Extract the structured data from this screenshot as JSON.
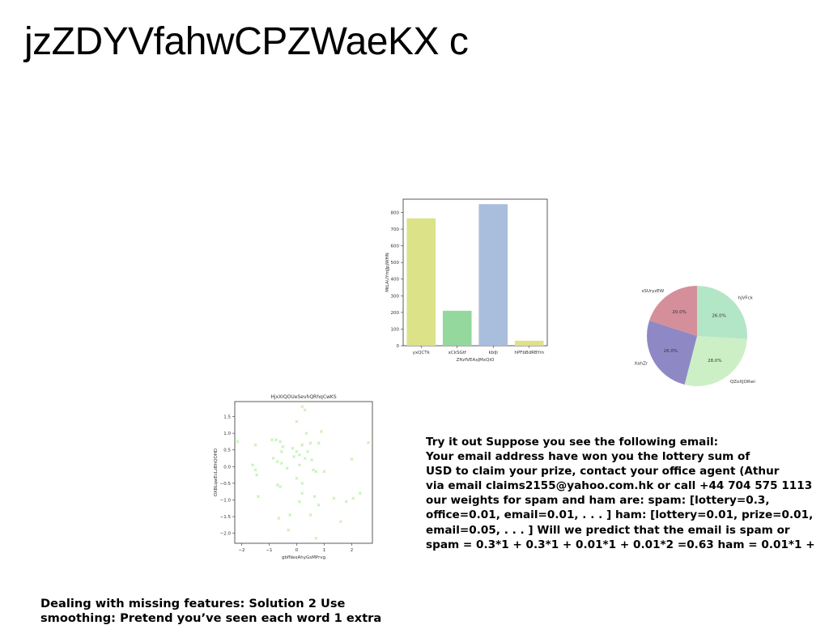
{
  "slide": {
    "title": "jzZDYVfahwCPZWaeKX c",
    "email_text": {
      "lines": [
        "Try it out Suppose you see the following email:",
        "Your email address have won you the lottery sum of",
        "USD to claim your prize, contact your office agent (Athur",
        "via email claims2155@yahoo.com.hk or call +44 704 575 1113",
        "our weights for spam and ham are: spam: [lottery=0.3,",
        "office=0.01, email=0.01, . . . ] ham: [lottery=0.01, prize=0.01,",
        "email=0.05, . . . ] Will we predict that the email is spam or",
        "spam = 0.3*1 + 0.3*1 + 0.01*1 + 0.01*2 =0.63 ham = 0.01*1 +"
      ]
    },
    "bottom_text": {
      "lines": [
        "Dealing with missing features: Solution 2 Use",
        "smoothing: Pretend you’ve seen each word 1 extra"
      ]
    }
  },
  "chart_data": [
    {
      "type": "bar",
      "title": "",
      "xlabel": "ZftzfVEAxJMxQiO",
      "ylabel": "MtLAUYmJJpjWHN",
      "categories": [
        "yxQCTk",
        "xCkSGtf",
        "kbIJi",
        "hPFbBdRBYm"
      ],
      "values": [
        765,
        210,
        850,
        30
      ],
      "colors": [
        "#dce287",
        "#94d89e",
        "#a9bddc",
        "#dfe187"
      ],
      "ylim": [
        0,
        880
      ],
      "yticks": [
        "0",
        "100",
        "200",
        "300",
        "400",
        "500",
        "600",
        "700",
        "800"
      ],
      "grid": false
    },
    {
      "type": "pie",
      "title": "",
      "labels": [
        "hjVFck",
        "QZoXJORwi",
        "XahZr",
        "sSUryzEW"
      ],
      "values": [
        26.0,
        28.0,
        26.0,
        20.0
      ],
      "pct_labels": [
        "26.0%",
        "28.0%",
        "26.0%",
        "20.0%"
      ],
      "colors": [
        "#b3e6c6",
        "#cdefc5",
        "#8e89c4",
        "#d48f9b"
      ]
    },
    {
      "type": "scatter",
      "title": "HjxXIQOUeSevhQRhqCwKS",
      "xlabel": "gbfNexAhyGsMPrvg",
      "ylabel": "OXBLqwEcLzBhQOHD",
      "xlim": [
        -2.25,
        2.75
      ],
      "ylim": [
        -2.3,
        1.95
      ],
      "xticks": [
        "−2",
        "−1",
        "0",
        "1",
        "2"
      ],
      "yticks": [
        "−2.0",
        "−1.5",
        "−1.0",
        "−0.5",
        "0.0",
        "0.5",
        "1.0",
        "1.5"
      ],
      "marker_color": "#b5ef9f",
      "marker": "x",
      "points": [
        [
          0.2,
          1.8
        ],
        [
          0.3,
          1.7
        ],
        [
          0.0,
          1.35
        ],
        [
          0.9,
          1.05
        ],
        [
          0.35,
          1.0
        ],
        [
          -2.15,
          0.75
        ],
        [
          -1.5,
          0.65
        ],
        [
          -0.9,
          0.8
        ],
        [
          -0.75,
          0.8
        ],
        [
          -0.6,
          0.75
        ],
        [
          -0.5,
          0.6
        ],
        [
          0.2,
          0.65
        ],
        [
          0.5,
          0.7
        ],
        [
          0.8,
          0.7
        ],
        [
          2.6,
          0.72
        ],
        [
          -0.55,
          0.45
        ],
        [
          -0.15,
          0.55
        ],
        [
          0.0,
          0.45
        ],
        [
          0.4,
          0.45
        ],
        [
          -0.85,
          0.25
        ],
        [
          -0.7,
          0.15
        ],
        [
          -0.55,
          0.1
        ],
        [
          -0.1,
          0.3
        ],
        [
          0.1,
          0.35
        ],
        [
          0.3,
          0.25
        ],
        [
          0.55,
          0.2
        ],
        [
          2.0,
          0.22
        ],
        [
          -1.6,
          0.05
        ],
        [
          -1.5,
          -0.1
        ],
        [
          -1.45,
          -0.25
        ],
        [
          -0.35,
          -0.05
        ],
        [
          0.1,
          0.05
        ],
        [
          0.6,
          -0.1
        ],
        [
          0.7,
          -0.15
        ],
        [
          1.0,
          -0.15
        ],
        [
          -0.7,
          -0.55
        ],
        [
          -0.6,
          -0.6
        ],
        [
          0.0,
          -0.35
        ],
        [
          0.2,
          -0.5
        ],
        [
          -1.4,
          -0.9
        ],
        [
          0.2,
          -0.8
        ],
        [
          0.65,
          -0.9
        ],
        [
          1.35,
          -0.95
        ],
        [
          1.8,
          -1.05
        ],
        [
          2.05,
          -0.95
        ],
        [
          2.3,
          -0.8
        ],
        [
          0.1,
          -1.05
        ],
        [
          0.8,
          -1.15
        ],
        [
          -0.25,
          -1.45
        ],
        [
          -0.65,
          -1.55
        ],
        [
          0.5,
          -1.45
        ],
        [
          1.6,
          -1.65
        ],
        [
          -0.3,
          -1.9
        ],
        [
          0.7,
          -2.15
        ]
      ]
    }
  ]
}
